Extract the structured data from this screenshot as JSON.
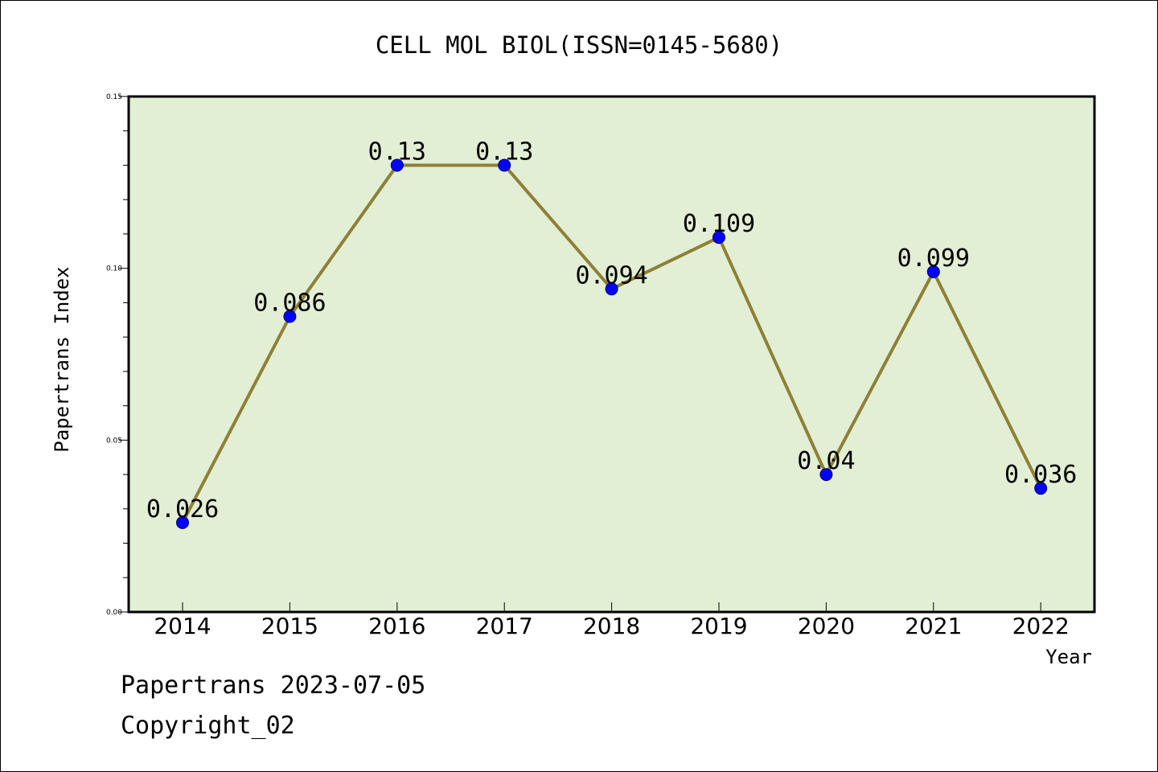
{
  "chart_data": {
    "type": "line",
    "title": "CELL MOL BIOL(ISSN=0145-5680)",
    "xlabel": "Year",
    "ylabel": "Papertrans Index",
    "categories": [
      "2014",
      "2015",
      "2016",
      "2017",
      "2018",
      "2019",
      "2020",
      "2021",
      "2022"
    ],
    "values": [
      0.026,
      0.086,
      0.13,
      0.13,
      0.094,
      0.109,
      0.04,
      0.099,
      0.036
    ],
    "data_labels": [
      "0.026",
      "0.086",
      "0.13",
      "0.13",
      "0.094",
      "0.109",
      "0.04",
      "0.099",
      "0.036"
    ],
    "ylim": [
      0,
      0.15
    ],
    "yticks": [
      {
        "value": 0.0,
        "label": "0.00"
      },
      {
        "value": 0.05,
        "label": "0.05"
      },
      {
        "value": 0.1,
        "label": "0.10"
      },
      {
        "value": 0.15,
        "label": "0.15"
      }
    ],
    "grid": false,
    "colors": {
      "plot_background": "#e2efd5",
      "line": "#8e8035",
      "marker": "#0000ff",
      "axes": "#000000"
    }
  },
  "footer": {
    "date_text": "Papertrans 2023-07-05",
    "copyright_text": "Copyright_02"
  }
}
